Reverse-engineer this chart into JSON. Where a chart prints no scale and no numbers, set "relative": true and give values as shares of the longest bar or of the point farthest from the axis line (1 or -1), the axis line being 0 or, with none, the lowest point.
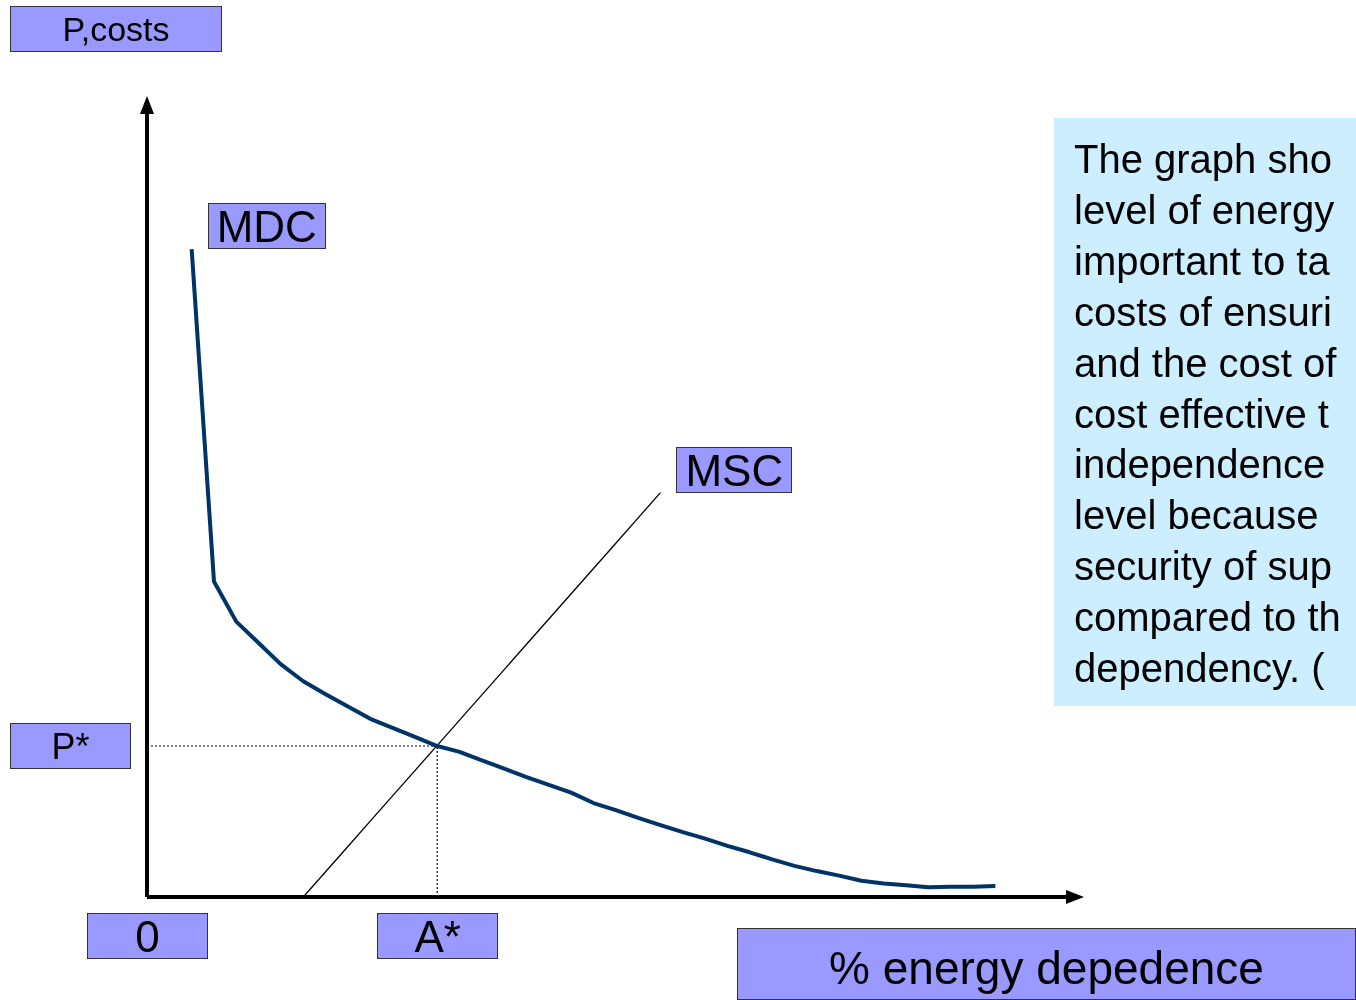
{
  "chart_data": {
    "type": "line",
    "relative": true,
    "xlabel": "% energy depedence",
    "ylabel": "P,costs",
    "ylim": [
      0,
      1.23
    ],
    "grid": false,
    "legend": false,
    "marker": "none",
    "categories": [
      "0",
      null,
      null,
      null,
      null,
      null,
      null,
      null,
      null,
      null,
      null,
      null,
      null,
      "A*",
      null,
      null,
      null,
      null,
      null,
      null,
      null,
      null,
      null,
      null,
      null,
      null,
      null,
      null,
      null,
      null,
      null,
      null,
      null,
      null,
      null,
      null,
      null,
      null,
      null,
      null,
      null
    ],
    "series": [
      {
        "name": "MDC",
        "color": "#003366",
        "values": [
          null,
          null,
          1.0,
          0.487,
          0.425,
          0.392,
          0.359,
          0.333,
          0.313,
          0.294,
          0.275,
          0.261,
          0.247,
          0.233,
          0.224,
          0.211,
          0.198,
          0.185,
          0.173,
          0.161,
          0.145,
          0.134,
          0.122,
          0.111,
          0.1,
          0.09,
          0.079,
          0.069,
          0.058,
          0.048,
          0.04,
          0.033,
          0.025,
          0.021,
          0.018,
          0.015,
          0.016,
          0.016,
          0.017,
          null,
          null
        ]
      },
      {
        "name": "MSC",
        "color": "#000000",
        "values": [
          null,
          null,
          null,
          null,
          null,
          null,
          null,
          0,
          0.039,
          0.078,
          0.117,
          0.156,
          0.195,
          0.234,
          0.273,
          0.312,
          0.351,
          0.39,
          0.429,
          0.468,
          0.507,
          0.546,
          0.585,
          0.624,
          null,
          null,
          null,
          null,
          null,
          null,
          null,
          null,
          null,
          null,
          null,
          null,
          null,
          null,
          null,
          null,
          null
        ]
      }
    ],
    "ref_lines": [
      {
        "axis": "y",
        "value": 0.233,
        "label": "P*",
        "color": "#000000",
        "line_style": "dotted"
      },
      {
        "axis": "x",
        "value": "A*",
        "color": "#000000",
        "line_style": "dotted"
      }
    ],
    "annotations": [
      "The graph sho\nlevel of energy\nimportant to ta\ncosts of ensuri\nand the cost of\ncost effective t\nindependence\nlevel because\nsecurity of sup\ncompared to th\ndependency. ("
    ]
  }
}
